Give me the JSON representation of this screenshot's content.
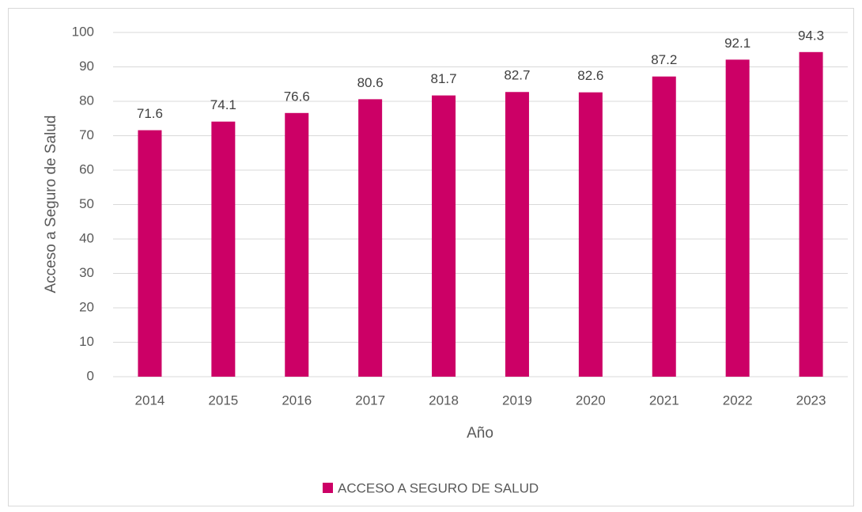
{
  "chart_data": {
    "type": "bar",
    "x_label": "Año",
    "y_label": "Acceso a Seguro de Salud",
    "categories": [
      "2014",
      "2015",
      "2016",
      "2017",
      "2018",
      "2019",
      "2020",
      "2021",
      "2022",
      "2023"
    ],
    "series": [
      {
        "name": "ACCESO A SEGURO DE SALUD",
        "color": "#cc0066",
        "values": [
          71.6,
          74.1,
          76.6,
          80.6,
          81.7,
          82.7,
          82.6,
          87.2,
          92.1,
          94.3
        ]
      }
    ],
    "ylim": [
      0,
      100
    ],
    "yticks": [
      0,
      10,
      20,
      30,
      40,
      50,
      60,
      70,
      80,
      90,
      100
    ],
    "grid": true,
    "legend": "bottom"
  }
}
